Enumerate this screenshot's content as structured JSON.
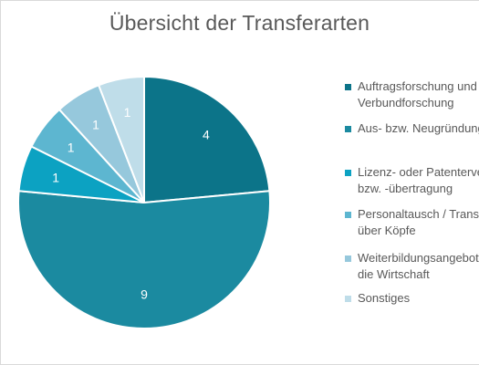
{
  "chart_data": {
    "type": "pie",
    "title": "Übersicht der Transferarten",
    "legend_position": "right",
    "start_angle_deg": 0,
    "direction": "clockwise",
    "slices": [
      {
        "label": [
          "Auftragsforschung und",
          "Verbundforschung"
        ],
        "value": 4,
        "value_label": "4",
        "color": "#0c7489"
      },
      {
        "label": [
          "Aus- bzw. Neugründungen"
        ],
        "value": 9,
        "value_label": "9",
        "color": "#1b8aa0"
      },
      {
        "label": [
          "Lizenz- oder Patentervergabe",
          "bzw. -übertragung"
        ],
        "value": 1,
        "value_label": "1",
        "color": "#0ca2c2"
      },
      {
        "label": [
          "Personaltausch / Transfer",
          "über Köpfe"
        ],
        "value": 1,
        "value_label": "1",
        "color": "#5db6d0"
      },
      {
        "label": [
          "Weiterbildungsangebote für",
          "die Wirtschaft"
        ],
        "value": 1,
        "value_label": "1",
        "color": "#96c8dc"
      },
      {
        "label": [
          "Sonstiges"
        ],
        "value": 1,
        "value_label": "1",
        "color": "#bfdde9"
      }
    ]
  }
}
